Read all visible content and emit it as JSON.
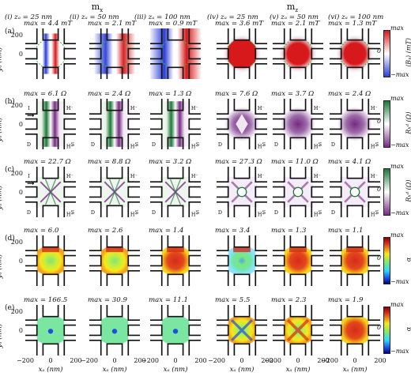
{
  "group_headers": [
    "mₓ",
    "m₂"
  ],
  "group_header_parts": {
    "x": {
      "base": "m",
      "sub": "x"
    },
    "z": {
      "base": "m",
      "sub": "z"
    }
  },
  "columns": [
    "(i)  zₐ = 25 nm",
    "(ii)  zₐ = 50 nm",
    "(iii) zₐ = 100 nm",
    "(iv)  zₐ = 25 nm",
    "(v)  zₐ = 50 nm",
    "(vi) zₐ = 100 nm"
  ],
  "rows": [
    {
      "label": "(a)",
      "colorbar_title": "⟨Bᵧ⟩ (mT)",
      "colorbar_kind": "bwr",
      "maxes": [
        "max = 4.4 mT",
        "max = 2.1 mT",
        "max = 0.9 mT",
        "max = 3.6 mT",
        "max = 2.1 mT",
        "max = 1.3 mT"
      ]
    },
    {
      "label": "(b)",
      "colorbar_title": "Rₕᵈ (Ω)",
      "colorbar_side": "Diffusive",
      "colorbar_kind": "prgn",
      "maxes": [
        "max = 6.1 Ω",
        "max = 2.4 Ω",
        "max = 1.3 Ω",
        "max = 7.6 Ω",
        "max = 3.7 Ω",
        "max = 2.4 Ω"
      ]
    },
    {
      "label": "(c)",
      "colorbar_title": "Rₕᵈ (Ω)",
      "colorbar_side": "Ballistic",
      "colorbar_kind": "prgn",
      "maxes": [
        "max = 22.7 Ω",
        "max = 8.8 Ω",
        "max = 3.2 Ω",
        "max = 27.3 Ω",
        "max = 11.0 Ω",
        "max = 4.1 Ω"
      ]
    },
    {
      "label": "(d)",
      "colorbar_title": "α",
      "colorbar_side": "Diffusive",
      "colorbar_kind": "jet",
      "maxes": [
        "max = 6.0",
        "max = 2.6",
        "max = 1.4",
        "max = 3.4",
        "max = 1.3",
        "max = 1.1"
      ]
    },
    {
      "label": "(e)",
      "colorbar_title": "α",
      "colorbar_side": "Ballistic",
      "colorbar_kind": "jet",
      "maxes": [
        "max = 166.5",
        "max = 30.9",
        "max = 11.1",
        "max = 5.5",
        "max = 2.3",
        "max = 1.9"
      ]
    }
  ],
  "colorbar_ticks": {
    "top": "max",
    "mid": "0",
    "bottom": "−max"
  },
  "axes": {
    "ylabel": "yₐ (nm)",
    "xlabel": "xₐ (nm)",
    "yticks": [
      "200",
      "0"
    ],
    "xticks": [
      "−200",
      "0",
      "200"
    ]
  },
  "contact_labels": {
    "I": "I",
    "D": "D",
    "S": "S",
    "H_minus": "H⁻",
    "H_plus": "H⁺"
  },
  "colors": {
    "red": "#d7191c",
    "blue": "#2c3fd6",
    "green": "#1b7837",
    "purple": "#762a83",
    "jet_blue": "#1f4fe0",
    "jet_green": "#7be67b",
    "jet_yellow": "#f6e61c",
    "jet_red": "#d62b1c",
    "outline": "#111111",
    "dash": "#2bbf2b"
  }
}
